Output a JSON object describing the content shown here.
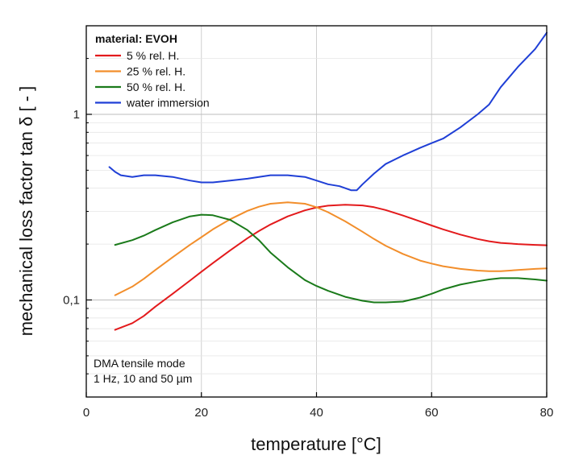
{
  "chart_data": {
    "type": "line",
    "xlabel": "temperature [°C]",
    "ylabel": "mechanical loss factor tan δ [ - ]",
    "xlim": [
      0,
      80
    ],
    "ylim": [
      0.03,
      3.0
    ],
    "yscale": "log",
    "x_ticks": [
      0,
      20,
      40,
      60,
      80
    ],
    "y_ticks": [
      {
        "value": 0.1,
        "label": "0,1"
      },
      {
        "value": 1,
        "label": "1"
      }
    ],
    "grid": true,
    "legend": {
      "title": "material: EVOH",
      "placement": "top-left"
    },
    "annotation": [
      "DMA tensile mode",
      "1 Hz, 10 and 50 µm"
    ],
    "series": [
      {
        "name": "5 % rel. H.",
        "color": "#e31a1c",
        "x": [
          5,
          8,
          10,
          12,
          15,
          18,
          20,
          22,
          25,
          28,
          30,
          32,
          35,
          38,
          40,
          42,
          45,
          48,
          50,
          52,
          55,
          58,
          60,
          62,
          65,
          68,
          70,
          72,
          75,
          78,
          80
        ],
        "y": [
          0.069,
          0.075,
          0.082,
          0.092,
          0.108,
          0.127,
          0.142,
          0.158,
          0.185,
          0.215,
          0.235,
          0.255,
          0.282,
          0.304,
          0.315,
          0.322,
          0.326,
          0.323,
          0.316,
          0.305,
          0.285,
          0.265,
          0.252,
          0.24,
          0.225,
          0.213,
          0.207,
          0.203,
          0.2,
          0.198,
          0.197
        ]
      },
      {
        "name": "25 % rel. H.",
        "color": "#f28e2b",
        "x": [
          5,
          8,
          10,
          12,
          15,
          18,
          20,
          22,
          25,
          28,
          30,
          32,
          35,
          38,
          40,
          42,
          45,
          48,
          50,
          52,
          55,
          58,
          60,
          62,
          65,
          68,
          70,
          72,
          75,
          78,
          80
        ],
        "y": [
          0.106,
          0.118,
          0.13,
          0.145,
          0.17,
          0.198,
          0.218,
          0.24,
          0.272,
          0.302,
          0.318,
          0.33,
          0.336,
          0.33,
          0.316,
          0.297,
          0.265,
          0.233,
          0.213,
          0.196,
          0.177,
          0.163,
          0.157,
          0.152,
          0.147,
          0.144,
          0.143,
          0.143,
          0.145,
          0.147,
          0.148
        ]
      },
      {
        "name": "50 % rel. H.",
        "color": "#1a7a1a",
        "x": [
          5,
          8,
          10,
          12,
          15,
          18,
          20,
          22,
          25,
          28,
          30,
          32,
          35,
          38,
          40,
          42,
          45,
          48,
          50,
          52,
          55,
          58,
          60,
          62,
          65,
          68,
          70,
          72,
          75,
          78,
          80
        ],
        "y": [
          0.198,
          0.21,
          0.222,
          0.238,
          0.262,
          0.282,
          0.288,
          0.286,
          0.27,
          0.238,
          0.21,
          0.18,
          0.15,
          0.128,
          0.119,
          0.112,
          0.104,
          0.099,
          0.097,
          0.097,
          0.098,
          0.103,
          0.108,
          0.114,
          0.121,
          0.126,
          0.129,
          0.131,
          0.131,
          0.129,
          0.127
        ]
      },
      {
        "name": "water immersion",
        "color": "#1f3fd6",
        "x": [
          4,
          5,
          6,
          8,
          10,
          12,
          15,
          18,
          20,
          22,
          25,
          28,
          30,
          32,
          35,
          38,
          40,
          42,
          44,
          46,
          47,
          48,
          50,
          52,
          55,
          58,
          60,
          62,
          65,
          68,
          70,
          72,
          75,
          78,
          80
        ],
        "y": [
          0.52,
          0.49,
          0.47,
          0.46,
          0.47,
          0.47,
          0.46,
          0.44,
          0.43,
          0.43,
          0.44,
          0.45,
          0.46,
          0.47,
          0.47,
          0.46,
          0.44,
          0.42,
          0.41,
          0.39,
          0.39,
          0.42,
          0.48,
          0.54,
          0.6,
          0.66,
          0.7,
          0.74,
          0.85,
          1.0,
          1.13,
          1.4,
          1.8,
          2.25,
          2.75
        ]
      }
    ]
  }
}
